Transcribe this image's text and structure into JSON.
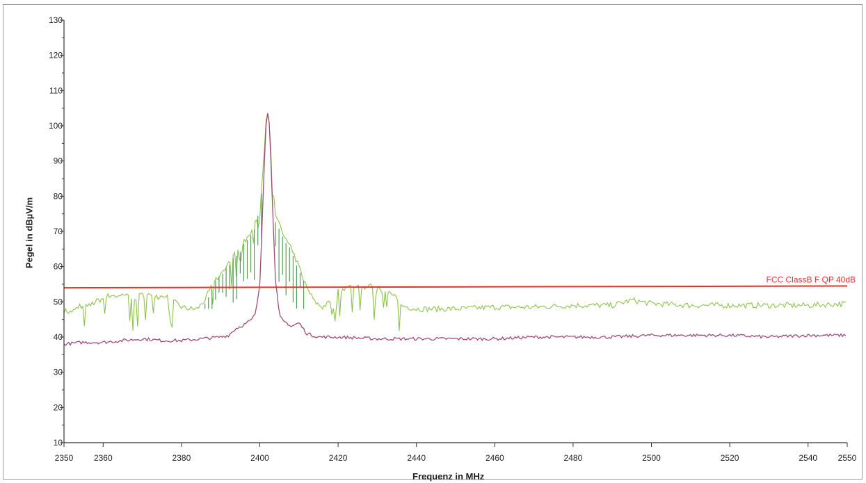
{
  "chart_data": {
    "type": "line",
    "xlabel": "Frequenz in MHz",
    "ylabel": "Pegel in dBµV/m",
    "xlim": [
      2350,
      2550
    ],
    "ylim": [
      10,
      130
    ],
    "x_ticks": [
      2350,
      2360,
      2380,
      2400,
      2420,
      2440,
      2460,
      2480,
      2500,
      2520,
      2540,
      2550
    ],
    "y_ticks": [
      10,
      20,
      30,
      40,
      50,
      60,
      70,
      80,
      90,
      100,
      110,
      120,
      130
    ],
    "grid": false,
    "colors": {
      "peak_trace": "#8bc34a",
      "peak_bars": "#4f9e57",
      "average_trace": "#a24a78",
      "limit_line": "#e0352b"
    },
    "series": [
      {
        "role": "peak",
        "x": [
          2350,
          2352,
          2354,
          2356,
          2358,
          2360,
          2362,
          2364,
          2366,
          2368,
          2370,
          2372,
          2374,
          2376,
          2378,
          2380,
          2382,
          2384,
          2386,
          2388,
          2390,
          2392,
          2394,
          2396,
          2398,
          2399,
          2400,
          2401,
          2401.5,
          2402,
          2402.5,
          2403,
          2404,
          2405,
          2406,
          2408,
          2410,
          2412,
          2414,
          2416,
          2418,
          2420,
          2422,
          2424,
          2426,
          2428,
          2430,
          2432,
          2434,
          2436,
          2440,
          2450,
          2460,
          2470,
          2480,
          2490,
          2495,
          2500,
          2510,
          2520,
          2530,
          2540,
          2550
        ],
        "y": [
          47.5,
          47.0,
          49.0,
          48.5,
          50.0,
          51.0,
          52.0,
          51.5,
          52.5,
          51.0,
          52.0,
          52.5,
          51.5,
          52.0,
          50.0,
          48.5,
          48.0,
          48.0,
          50.5,
          55.0,
          58.0,
          61.0,
          64.0,
          67.0,
          70.0,
          73.0,
          77.0,
          90.0,
          100.0,
          104.0,
          100.0,
          90.0,
          74.0,
          72.0,
          69.0,
          65.0,
          60.0,
          54.0,
          50.0,
          48.5,
          50.0,
          53.0,
          54.0,
          54.5,
          54.0,
          54.5,
          54.0,
          53.0,
          52.0,
          49.0,
          48.0,
          48.0,
          48.5,
          48.5,
          49.0,
          49.0,
          50.5,
          49.5,
          49.0,
          49.0,
          49.0,
          49.0,
          49.5
        ]
      },
      {
        "role": "average",
        "x": [
          2350,
          2355,
          2360,
          2365,
          2370,
          2375,
          2380,
          2385,
          2390,
          2392,
          2394,
          2396,
          2398,
          2399,
          2400,
          2401,
          2401.5,
          2402,
          2402.5,
          2403,
          2404,
          2405,
          2406,
          2407,
          2408,
          2409,
          2410,
          2412,
          2415,
          2420,
          2430,
          2440,
          2450,
          2460,
          2470,
          2480,
          2490,
          2500,
          2510,
          2520,
          2530,
          2540,
          2550
        ],
        "y": [
          38.0,
          38.5,
          38.5,
          39.0,
          39.5,
          39.0,
          39.0,
          39.5,
          40.0,
          40.5,
          42.5,
          43.5,
          45.0,
          47.0,
          55.0,
          85.0,
          100.0,
          103.5,
          100.0,
          85.0,
          56.0,
          46.0,
          44.5,
          44.0,
          43.0,
          43.5,
          44.0,
          41.0,
          40.0,
          40.0,
          39.5,
          39.5,
          39.5,
          39.5,
          40.0,
          40.0,
          40.0,
          40.5,
          40.5,
          40.5,
          40.0,
          40.5,
          40.5
        ]
      },
      {
        "role": "limit",
        "name": "FCC ClassB F QP 40dB",
        "x": [
          2350,
          2550
        ],
        "y": [
          54,
          54.5
        ]
      }
    ]
  }
}
